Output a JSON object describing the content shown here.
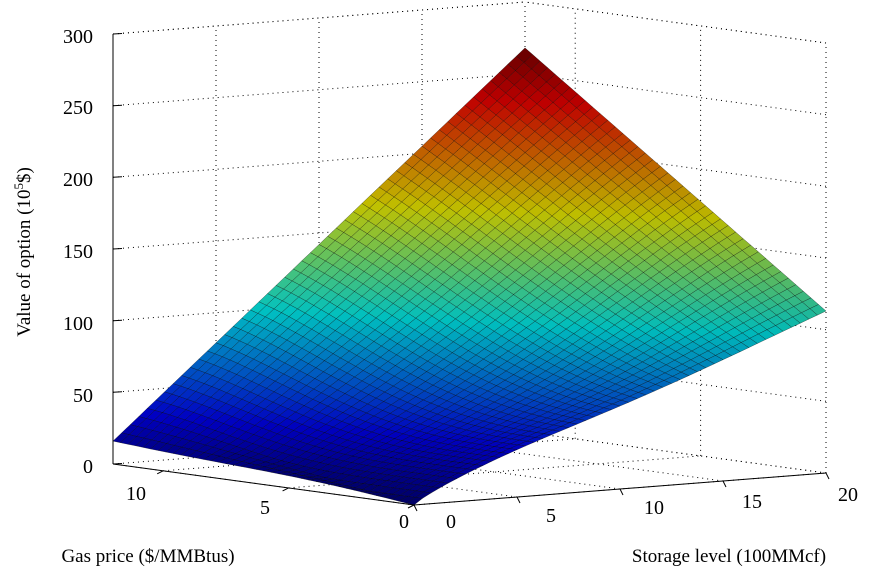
{
  "chart_data": {
    "type": "surface",
    "title": "",
    "xlabel": "Storage level (100MMcf)",
    "ylabel": "Gas price ($/MMBtus)",
    "zlabel": "Value of option (10",
    "zlabel_sup": "5",
    "zlabel_end": "$)",
    "x_ticks": [
      "0",
      "5",
      "10",
      "15",
      "20"
    ],
    "y_ticks": [
      "0",
      "5",
      "10"
    ],
    "z_ticks": [
      "0",
      "50",
      "100",
      "150",
      "200",
      "250",
      "300"
    ],
    "xlim": [
      0,
      20
    ],
    "ylim": [
      0,
      12
    ],
    "zlim": [
      0,
      300
    ],
    "grid": true,
    "colormap": "jet",
    "corner_values": [
      {
        "storage": 0,
        "price": 0,
        "value": 0
      },
      {
        "storage": 0,
        "price": 12,
        "value": 16
      },
      {
        "storage": 20,
        "price": 0,
        "value": 113
      },
      {
        "storage": 20,
        "price": 12,
        "value": 268
      }
    ]
  }
}
